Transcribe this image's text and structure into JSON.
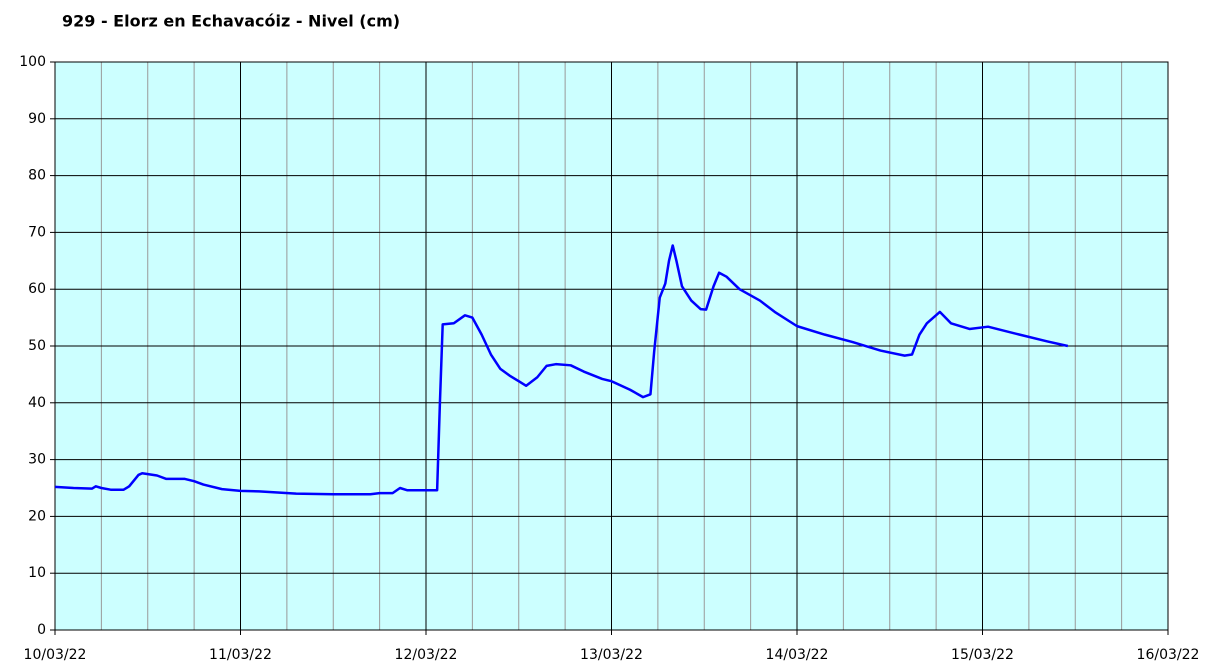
{
  "chart_data": {
    "type": "line",
    "title": "929 - Elorz en Echavacóiz - Nivel (cm)",
    "x": [
      0,
      0.1,
      0.2,
      0.22,
      0.25,
      0.3,
      0.37,
      0.4,
      0.45,
      0.47,
      0.55,
      0.6,
      0.7,
      0.75,
      0.8,
      0.9,
      1.0,
      1.1,
      1.2,
      1.3,
      1.5,
      1.7,
      1.75,
      1.82,
      1.86,
      1.9,
      2.0,
      2.06,
      2.075,
      2.09,
      2.15,
      2.21,
      2.25,
      2.3,
      2.35,
      2.4,
      2.45,
      2.5,
      2.54,
      2.6,
      2.65,
      2.7,
      2.78,
      2.85,
      2.95,
      3.0,
      3.1,
      3.17,
      3.21,
      3.23,
      3.26,
      3.29,
      3.31,
      3.33,
      3.35,
      3.38,
      3.43,
      3.48,
      3.51,
      3.55,
      3.58,
      3.62,
      3.69,
      3.8,
      3.88,
      4.0,
      4.15,
      4.3,
      4.45,
      4.58,
      4.62,
      4.66,
      4.7,
      4.77,
      4.83,
      4.93,
      5.03,
      5.2,
      5.35,
      5.46
    ],
    "series": [
      {
        "name": "Nivel",
        "color": "#0000ff",
        "values": [
          25.2,
          25,
          24.9,
          25.3,
          25,
          24.7,
          24.7,
          25.3,
          27.3,
          27.6,
          27.2,
          26.6,
          26.6,
          26.2,
          25.6,
          24.8,
          24.5,
          24.4,
          24.2,
          24,
          23.9,
          23.9,
          24.1,
          24.1,
          25,
          24.6,
          24.6,
          24.6,
          40,
          53.8,
          54,
          55.4,
          55,
          52,
          48.5,
          46,
          44.8,
          43.8,
          43,
          44.5,
          46.5,
          46.8,
          46.6,
          45.5,
          44.2,
          43.8,
          42.3,
          41,
          41.5,
          49,
          58.5,
          61,
          65,
          67.7,
          65,
          60.5,
          58,
          56.5,
          56.4,
          60.5,
          62.9,
          62.2,
          60,
          58,
          56,
          53.5,
          52,
          50.7,
          49.2,
          48.3,
          48.5,
          52,
          54,
          56,
          54,
          53,
          53.4,
          52,
          50.8,
          50
        ]
      }
    ],
    "xlim": [
      0,
      6
    ],
    "xticks": [
      {
        "value": 0,
        "label": "10/03/22"
      },
      {
        "value": 1,
        "label": "11/03/22"
      },
      {
        "value": 2,
        "label": "12/03/22"
      },
      {
        "value": 3,
        "label": "13/03/22"
      },
      {
        "value": 4,
        "label": "14/03/22"
      },
      {
        "value": 5,
        "label": "15/03/22"
      },
      {
        "value": 6,
        "label": "16/03/22"
      }
    ],
    "x_minor_ticks": [
      0.25,
      0.5,
      0.75,
      1.25,
      1.5,
      1.75,
      2.25,
      2.5,
      2.75,
      3.25,
      3.5,
      3.75,
      4.25,
      4.5,
      4.75,
      5.25,
      5.5,
      5.75
    ],
    "ylim": [
      0,
      100
    ],
    "yticks": [
      0,
      10,
      20,
      30,
      40,
      50,
      60,
      70,
      80,
      90,
      100
    ],
    "grid": true,
    "background": "#ccffff"
  }
}
